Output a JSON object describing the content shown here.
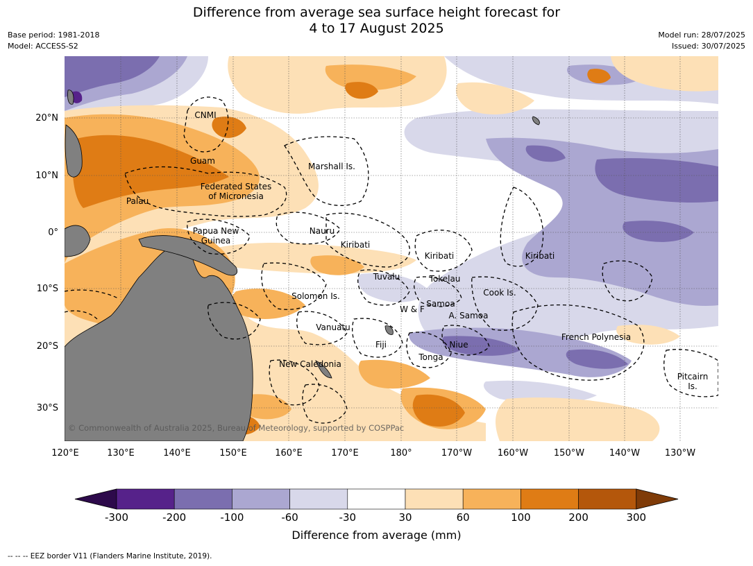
{
  "title_line1": "Difference from average sea surface height forecast for",
  "title_line2": "4 to 17 August 2025",
  "meta_left": [
    "Base period: 1981-2018",
    "Model: ACCESS-S2"
  ],
  "meta_right": [
    "Model run: 28/07/2025",
    "Issued: 30/07/2025"
  ],
  "lon_ticks": [
    "120°E",
    "130°E",
    "140°E",
    "150°E",
    "160°E",
    "170°E",
    "180°",
    "170°W",
    "160°W",
    "150°W",
    "140°W",
    "130°W"
  ],
  "lat_ticks": [
    "20°N",
    "10°N",
    "0°",
    "10°S",
    "20°S",
    "30°S"
  ],
  "regions": [
    "CNMI",
    "Guam",
    "Marshall Is.",
    "Federated States of Micronesia",
    "Palau",
    "Nauru",
    "Papua New Guinea",
    "Kiribati",
    "Kiribati",
    "Kiribati",
    "Tuvalu",
    "Tokelau",
    "Solomon Is.",
    "Cook Is.",
    "Samoa",
    "W & F",
    "A. Samoa",
    "Vanuatu",
    "Fiji",
    "Niue",
    "French Polynesia",
    "Tonga",
    "New Caledonia",
    "Pitcairn Is."
  ],
  "copyright": "© Commonwealth of Australia 2025, Bureau of Meteorology, supported by COSPPac",
  "colorbar": {
    "ticks": [
      "-300",
      "-200",
      "-100",
      "-60",
      "-30",
      "30",
      "60",
      "100",
      "200",
      "300"
    ],
    "colors": [
      "#2d0a4b",
      "#56228a",
      "#7b6eaf",
      "#aba7d1",
      "#d8d8ea",
      "#ffffff",
      "#fde0b6",
      "#f7b25a",
      "#df7c15",
      "#b4570b",
      "#7f3b08"
    ],
    "label": "Difference from average (mm)"
  },
  "legend_caption": "--  --  -- EEZ border V11 (Flanders Marine Institute, 2019)."
}
